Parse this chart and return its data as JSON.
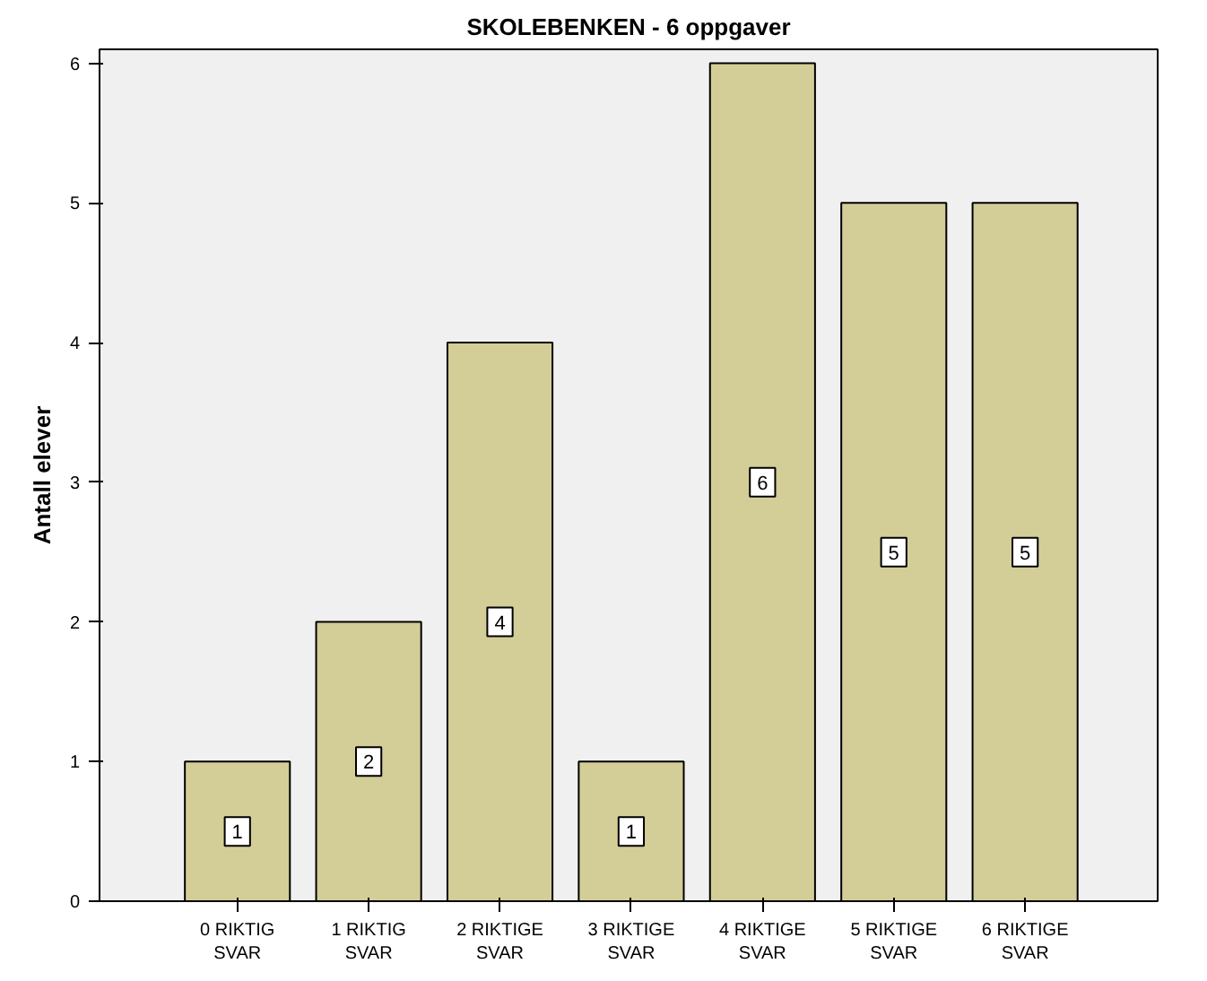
{
  "chart_data": {
    "type": "bar",
    "title": "SKOLEBENKEN - 6 oppgaver",
    "ylabel": "Antall elever",
    "categories": [
      "0 RIKTIG\nSVAR",
      "1 RIKTIG\nSVAR",
      "2 RIKTIGE\nSVAR",
      "3 RIKTIGE\nSVAR",
      "4 RIKTIGE\nSVAR",
      "5 RIKTIGE\nSVAR",
      "6 RIKTIGE\nSVAR"
    ],
    "values": [
      1,
      2,
      4,
      1,
      6,
      5,
      5
    ],
    "color": "#d3ce97",
    "ylim": [
      0,
      6.1
    ],
    "yticks": [
      0,
      1,
      2,
      3,
      4,
      5,
      6
    ],
    "grid": false,
    "data_labels": true
  }
}
